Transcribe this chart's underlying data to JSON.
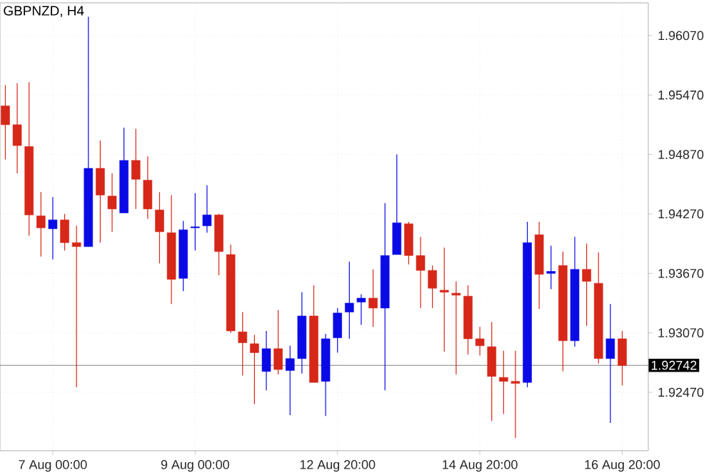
{
  "chart_data": {
    "type": "candlestick",
    "title": "GBPNZD, H4",
    "categories": [
      null,
      null,
      null,
      null,
      "7 Aug 00:00",
      null,
      null,
      null,
      null,
      null,
      null,
      null,
      null,
      null,
      null,
      null,
      "9 Aug 00:00",
      null,
      null,
      null,
      null,
      null,
      null,
      null,
      null,
      null,
      null,
      null,
      "12 Aug 20:00",
      null,
      null,
      null,
      null,
      null,
      null,
      null,
      null,
      null,
      null,
      null,
      "14 Aug 20:00",
      null,
      null,
      null,
      null,
      null,
      null,
      null,
      null,
      null,
      null,
      null,
      "16 Aug 20:00"
    ],
    "ohlc": [
      [
        1.9536,
        1.9557,
        1.9482,
        1.9517
      ],
      [
        1.9517,
        1.9559,
        1.9468,
        1.9496
      ],
      [
        1.9495,
        1.956,
        1.9405,
        1.9426
      ],
      [
        1.9425,
        1.9449,
        1.9384,
        1.9413
      ],
      [
        1.9412,
        1.9444,
        1.9381,
        1.9421
      ],
      [
        1.9421,
        1.9427,
        1.939,
        1.9398
      ],
      [
        1.9398,
        1.9415,
        1.9252,
        1.9394
      ],
      [
        1.9394,
        1.9626,
        1.9394,
        1.9473
      ],
      [
        1.9473,
        1.9501,
        1.9398,
        1.9446
      ],
      [
        1.9445,
        1.9468,
        1.9409,
        1.9432
      ],
      [
        1.9428,
        1.9514,
        1.9428,
        1.9481
      ],
      [
        1.9481,
        1.9513,
        1.9432,
        1.9462
      ],
      [
        1.9461,
        1.9485,
        1.9422,
        1.9432
      ],
      [
        1.9431,
        1.9449,
        1.9377,
        1.9409
      ],
      [
        1.9408,
        1.9446,
        1.9336,
        1.9361
      ],
      [
        1.9362,
        1.942,
        1.9349,
        1.9411
      ],
      [
        1.9413,
        1.9448,
        1.939,
        1.9414
      ],
      [
        1.9415,
        1.9456,
        1.9408,
        1.9426
      ],
      [
        1.9426,
        1.9427,
        1.9365,
        1.9389
      ],
      [
        1.9386,
        1.9396,
        1.9307,
        1.9309
      ],
      [
        1.9308,
        1.9328,
        1.9264,
        1.9297
      ],
      [
        1.9296,
        1.9305,
        1.9235,
        1.9287
      ],
      [
        1.9268,
        1.9309,
        1.9249,
        1.9291
      ],
      [
        1.9291,
        1.933,
        1.9265,
        1.927
      ],
      [
        1.9269,
        1.9294,
        1.9224,
        1.9281
      ],
      [
        1.9281,
        1.9348,
        1.9266,
        1.9324
      ],
      [
        1.9324,
        1.9355,
        1.9257,
        1.9257
      ],
      [
        1.9258,
        1.9306,
        1.9223,
        1.9301
      ],
      [
        1.9302,
        1.9332,
        1.9287,
        1.9327
      ],
      [
        1.9328,
        1.9379,
        1.9301,
        1.9337
      ],
      [
        1.9338,
        1.9346,
        1.9315,
        1.9342
      ],
      [
        1.9342,
        1.9371,
        1.9313,
        1.9332
      ],
      [
        1.9332,
        1.9438,
        1.9249,
        1.9385
      ],
      [
        1.9386,
        1.9487,
        1.9386,
        1.9418
      ],
      [
        1.9417,
        1.9419,
        1.9376,
        1.9385
      ],
      [
        1.9385,
        1.9404,
        1.9332,
        1.937
      ],
      [
        1.937,
        1.9375,
        1.9332,
        1.9352
      ],
      [
        1.935,
        1.9393,
        1.9288,
        1.9348
      ],
      [
        1.9347,
        1.9359,
        1.9265,
        1.9345
      ],
      [
        1.9344,
        1.9355,
        1.9285,
        1.9301
      ],
      [
        1.9301,
        1.9313,
        1.9284,
        1.9294
      ],
      [
        1.9293,
        1.9318,
        1.9218,
        1.9263
      ],
      [
        1.9262,
        1.9289,
        1.9225,
        1.9258
      ],
      [
        1.9258,
        1.9289,
        1.9201,
        1.9256
      ],
      [
        1.9257,
        1.9419,
        1.9252,
        1.9398
      ],
      [
        1.9406,
        1.9419,
        1.9331,
        1.9366
      ],
      [
        1.9367,
        1.9395,
        1.9351,
        1.9369
      ],
      [
        1.9375,
        1.9389,
        1.9268,
        1.9299
      ],
      [
        1.9299,
        1.9404,
        1.9293,
        1.9371
      ],
      [
        1.9371,
        1.9397,
        1.9314,
        1.9359
      ],
      [
        1.9357,
        1.9388,
        1.9276,
        1.9281
      ],
      [
        1.9281,
        1.9336,
        1.9216,
        1.9301
      ],
      [
        1.9301,
        1.9309,
        1.9254,
        1.9274
      ]
    ],
    "colors": [
      "#d62718",
      "#d62718",
      "#d62718",
      "#d62718",
      "#0a0ae6",
      "#d62718",
      "#d62718",
      "#0a0ae6",
      "#d62718",
      "#d62718",
      "#0a0ae6",
      "#d62718",
      "#d62718",
      "#d62718",
      "#d62718",
      "#0a0ae6",
      "#0a0ae6",
      "#0a0ae6",
      "#d62718",
      "#d62718",
      "#d62718",
      "#d62718",
      "#0a0ae6",
      "#d62718",
      "#0a0ae6",
      "#0a0ae6",
      "#d62718",
      "#0a0ae6",
      "#0a0ae6",
      "#0a0ae6",
      "#0a0ae6",
      "#d62718",
      "#0a0ae6",
      "#0a0ae6",
      "#d62718",
      "#d62718",
      "#d62718",
      "#d62718",
      "#d62718",
      "#d62718",
      "#d62718",
      "#d62718",
      "#d62718",
      "#d62718",
      "#0a0ae6",
      "#d62718",
      "#0a0ae6",
      "#d62718",
      "#0a0ae6",
      "#d62718",
      "#d62718",
      "#0a0ae6",
      "#d62718"
    ],
    "ylim": [
      1.9188,
      1.964
    ],
    "yticks": [
      {
        "value": 1.9247,
        "label": "1.92470"
      },
      {
        "value": 1.9307,
        "label": "1.93070"
      },
      {
        "value": 1.9367,
        "label": "1.93670"
      },
      {
        "value": 1.9427,
        "label": "1.94270"
      },
      {
        "value": 1.9487,
        "label": "1.94870"
      },
      {
        "value": 1.9547,
        "label": "1.95470"
      },
      {
        "value": 1.9607,
        "label": "1.96070"
      }
    ],
    "ref_lines": [
      {
        "axis": "y",
        "value": 1.92742,
        "label": "1.92742",
        "color": "#808080"
      }
    ],
    "grid": true
  }
}
